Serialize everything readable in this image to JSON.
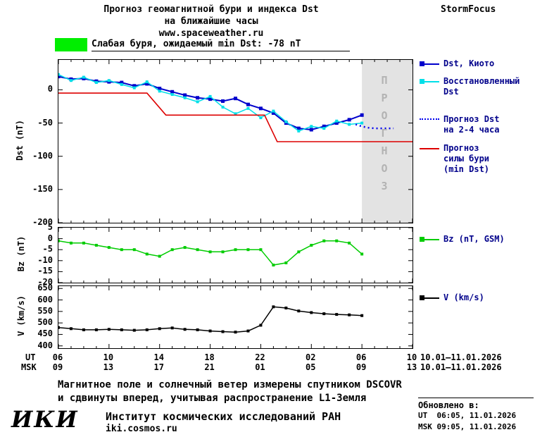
{
  "header": {
    "title_line1": "Прогноз геомагнитной бури и индекса Dst",
    "title_line2": "на ближайшие часы",
    "website": "www.spaceweather.ru",
    "brand": "StormFocus"
  },
  "alert": {
    "label": "Слабая буря, ожидаемый min Dst: -78 nT",
    "swatch_color": "#00ee00"
  },
  "legend": {
    "text_color": "#00008b",
    "dst_kyoto": "Dst, Киото",
    "restored": "Восстановленный\nDst",
    "forecast_dst": "Прогноз Dst\nна 2-4 часа",
    "forecast_storm": "Прогноз\nсилы бури\n(min Dst)",
    "bz": "Bz (nT, GSM)",
    "v": "V (km/s)"
  },
  "xaxis": {
    "ut_label": "UT",
    "msk_label": "MSK",
    "ut_ticks": [
      "06",
      "10",
      "14",
      "18",
      "22",
      "02",
      "06",
      "10"
    ],
    "msk_ticks": [
      "09",
      "13",
      "17",
      "21",
      "01",
      "05",
      "09",
      "13"
    ],
    "ut_daterange": "10.01–11.01.2026",
    "msk_daterange": "10.01–11.01.2026"
  },
  "chart_data": [
    {
      "id": "dst",
      "type": "line",
      "title": "Прогноз геомагнитной бури и индекса Dst на ближайшие часы",
      "ylabel": "Dst (nT)",
      "ylim": [
        -200,
        45
      ],
      "yticks": [
        0,
        -50,
        -100,
        -150,
        -200
      ],
      "xlim": [
        6,
        34
      ],
      "xticks": [
        6,
        10,
        14,
        18,
        22,
        26,
        30,
        34
      ],
      "forecast_region": {
        "x0": 30,
        "x1": 34,
        "fill": "#e3e3e3",
        "label": "П\nР\nО\nГ\nН\nО\nЗ"
      },
      "series": [
        {
          "name": "Dst, Киото",
          "color": "#0000cc",
          "marker": "square",
          "msize": 5,
          "width": 2,
          "x": [
            6,
            7,
            8,
            9,
            10,
            11,
            12,
            13,
            14,
            15,
            16,
            17,
            18,
            19,
            20,
            21,
            22,
            23,
            24,
            25,
            26,
            27,
            28,
            29,
            30
          ],
          "y": [
            20,
            16,
            17,
            13,
            12,
            11,
            6,
            9,
            2,
            -3,
            -8,
            -12,
            -14,
            -17,
            -13,
            -22,
            -28,
            -35,
            -50,
            -58,
            -60,
            -55,
            -50,
            -45,
            -38
          ]
        },
        {
          "name": "Восстановленный Dst",
          "color": "#00dfe8",
          "marker": "square",
          "msize": 4,
          "width": 1.5,
          "x": [
            6,
            7,
            8,
            9,
            10,
            11,
            12,
            13,
            14,
            15,
            16,
            17,
            18,
            19,
            20,
            21,
            22,
            23,
            24,
            25,
            26,
            27,
            28,
            29,
            30
          ],
          "y": [
            23,
            14,
            19,
            11,
            14,
            8,
            3,
            12,
            -2,
            -7,
            -12,
            -18,
            -10,
            -26,
            -36,
            -28,
            -42,
            -32,
            -48,
            -62,
            -55,
            -58,
            -47,
            -52,
            -50
          ]
        },
        {
          "name": "Прогноз Dst на 2-4 часа",
          "color": "#0000ee",
          "dash": "2,4",
          "width": 2.5,
          "x": [
            29.5,
            30,
            30.5,
            31,
            31.5,
            32,
            32.5
          ],
          "y": [
            -52,
            -55,
            -57,
            -58,
            -58,
            -58,
            -58
          ]
        },
        {
          "name": "Прогноз силы бури (min Dst)",
          "color": "#dd0000",
          "width": 1.6,
          "x": [
            6,
            13,
            14.5,
            22.3,
            23.3,
            34
          ],
          "y": [
            -5,
            -5,
            -38,
            -38,
            -78,
            -78
          ]
        }
      ]
    },
    {
      "id": "bz",
      "type": "line",
      "ylabel": "Bz (nT)",
      "ylim": [
        -20,
        5
      ],
      "yticks": [
        5,
        0,
        -5,
        -10,
        -15,
        -20
      ],
      "xlim": [
        6,
        34
      ],
      "xticks": [
        6,
        10,
        14,
        18,
        22,
        26,
        30,
        34
      ],
      "series": [
        {
          "name": "Bz (nT, GSM)",
          "color": "#00cc00",
          "marker": "square",
          "msize": 4,
          "width": 1.5,
          "x": [
            6,
            7,
            8,
            9,
            10,
            11,
            12,
            13,
            14,
            15,
            16,
            17,
            18,
            19,
            20,
            21,
            22,
            23,
            24,
            25,
            26,
            27,
            28,
            29,
            30
          ],
          "y": [
            -1,
            -2,
            -2,
            -3,
            -4,
            -5,
            -5,
            -7,
            -8,
            -5,
            -4,
            -5,
            -6,
            -6,
            -5,
            -5,
            -5,
            -12,
            -11,
            -6,
            -3,
            -1,
            -1,
            -2,
            -7
          ]
        }
      ]
    },
    {
      "id": "v",
      "type": "line",
      "ylabel": "V (km/s)",
      "ylim": [
        390,
        660
      ],
      "yticks": [
        650,
        600,
        550,
        500,
        450,
        400
      ],
      "xlim": [
        6,
        34
      ],
      "xticks": [
        6,
        10,
        14,
        18,
        22,
        26,
        30,
        34
      ],
      "series": [
        {
          "name": "V (km/s)",
          "color": "#000000",
          "marker": "square",
          "msize": 4,
          "width": 1.5,
          "x": [
            6,
            7,
            8,
            9,
            10,
            11,
            12,
            13,
            14,
            15,
            16,
            17,
            18,
            19,
            20,
            21,
            22,
            23,
            24,
            25,
            26,
            27,
            28,
            29,
            30
          ],
          "y": [
            480,
            475,
            470,
            470,
            472,
            470,
            468,
            470,
            475,
            478,
            472,
            470,
            465,
            462,
            460,
            465,
            490,
            570,
            565,
            552,
            545,
            540,
            537,
            535,
            532
          ]
        }
      ]
    }
  ],
  "footer": {
    "note_line1": "Магнитное поле и солнечный ветер измерены спутником DSCOVR",
    "note_line2": "и сдвинуты вперед, учитывая распространение L1-Земля",
    "logo": "ИКИ",
    "institute": "Институт космических исследований РАН",
    "site": "iki.cosmos.ru",
    "updated_label": "Обновлено в:",
    "updated_ut": "UT  06:05, 11.01.2026",
    "updated_msk": "MSK 09:05, 11.01.2026"
  }
}
